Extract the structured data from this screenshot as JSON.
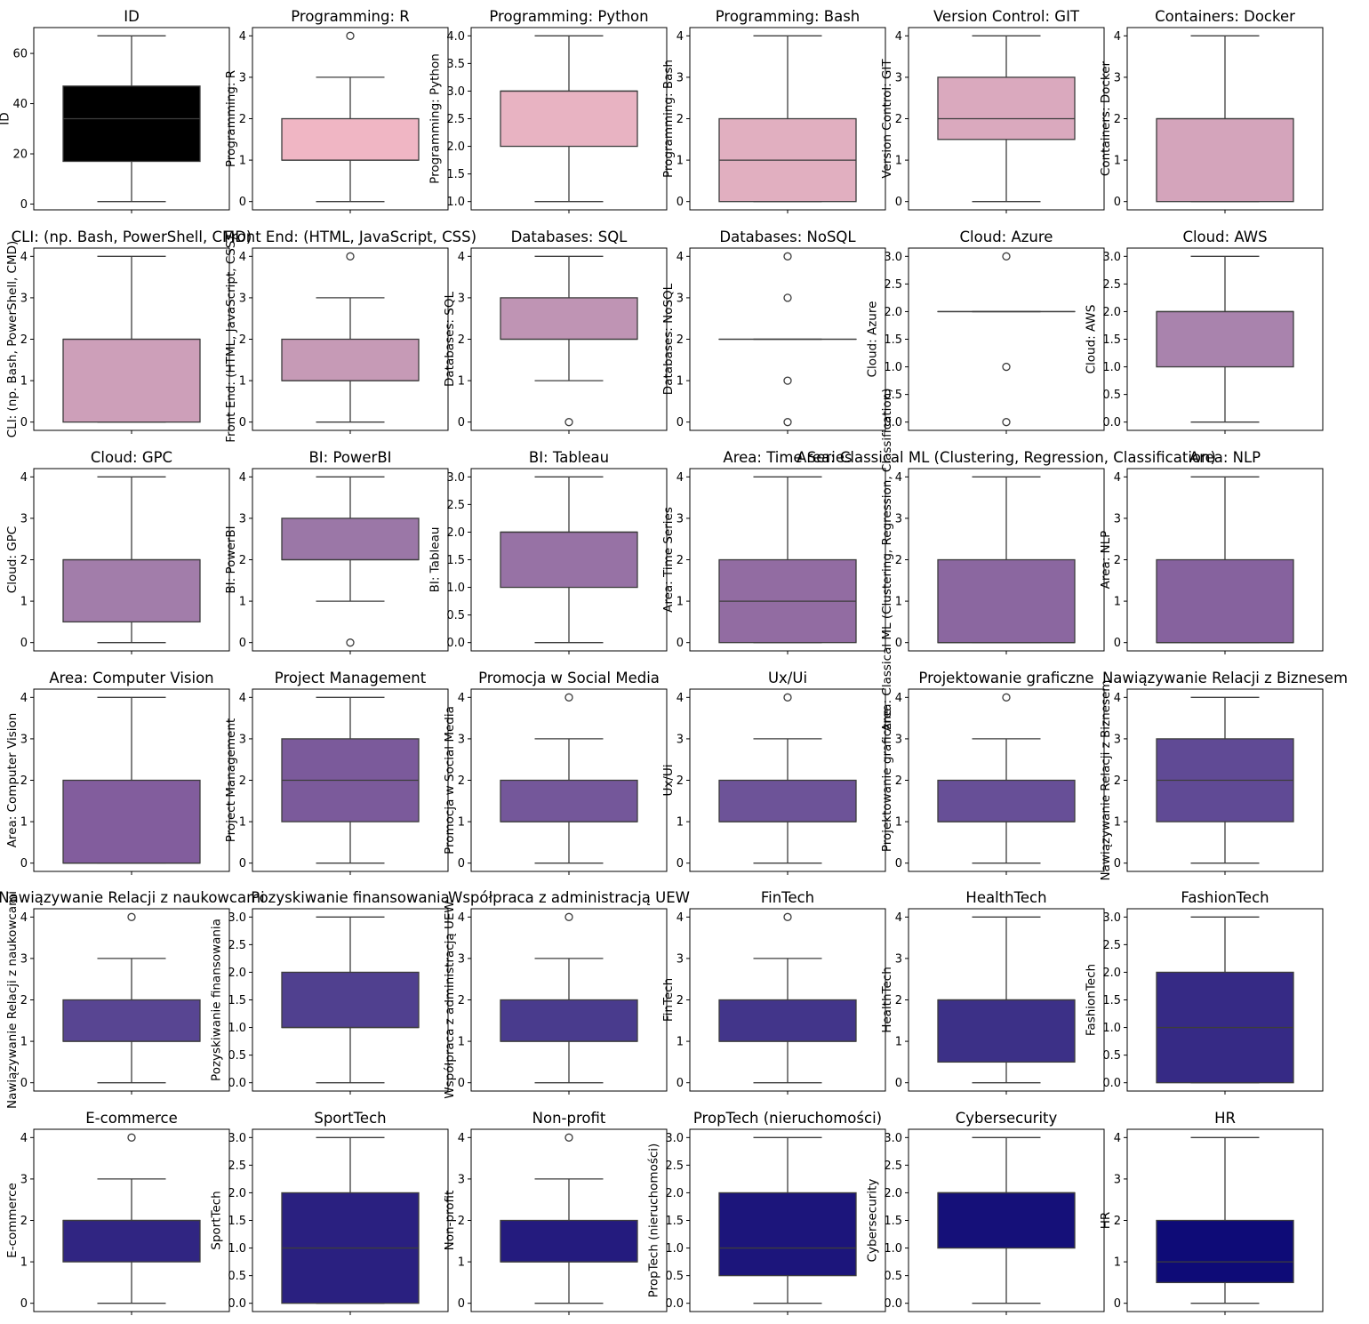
{
  "chart_data": [
    {
      "type": "box",
      "title": "ID",
      "ylabel": "ID",
      "ylim": [
        -2.3,
        70.3
      ],
      "yticks": [
        0,
        20,
        40,
        60
      ],
      "box": {
        "whislo": 1,
        "q1": 17,
        "median": 34,
        "q3": 47,
        "whishi": 67
      },
      "fliers": [],
      "color": "#000000"
    },
    {
      "type": "box",
      "title": "Programming: R",
      "ylabel": "Programming: R",
      "ylim": [
        -0.2,
        4.2
      ],
      "yticks": [
        0,
        1,
        2,
        3,
        4
      ],
      "box": {
        "whislo": 0,
        "q1": 1,
        "median": 1,
        "q3": 2,
        "whishi": 3
      },
      "fliers": [
        4
      ],
      "color": "#f0b6c4"
    },
    {
      "type": "box",
      "title": "Programming: Python",
      "ylabel": "Programming: Python",
      "ylim": [
        0.85,
        4.15
      ],
      "yticks": [
        1.0,
        1.5,
        2.0,
        2.5,
        3.0,
        3.5,
        4.0
      ],
      "box": {
        "whislo": 1,
        "q1": 2,
        "median": 3,
        "q3": 3,
        "whishi": 4
      },
      "fliers": [],
      "color": "#e8b3c2"
    },
    {
      "type": "box",
      "title": "Programming: Bash",
      "ylabel": "Programming: Bash",
      "ylim": [
        -0.2,
        4.2
      ],
      "yticks": [
        0,
        1,
        2,
        3,
        4
      ],
      "box": {
        "whislo": 0,
        "q1": 0,
        "median": 1,
        "q3": 2,
        "whishi": 4
      },
      "fliers": [],
      "color": "#e1afc0"
    },
    {
      "type": "box",
      "title": "Version Control: GIT",
      "ylabel": "Version Control: GIT",
      "ylim": [
        -0.2,
        4.2
      ],
      "yticks": [
        0,
        1,
        2,
        3,
        4
      ],
      "box": {
        "whislo": 0,
        "q1": 1.5,
        "median": 2,
        "q3": 3,
        "whishi": 4
      },
      "fliers": [],
      "color": "#daa9be"
    },
    {
      "type": "box",
      "title": "Containers: Docker",
      "ylabel": "Containers: Docker",
      "ylim": [
        -0.2,
        4.2
      ],
      "yticks": [
        0,
        1,
        2,
        3,
        4
      ],
      "box": {
        "whislo": 0,
        "q1": 0,
        "median": 2,
        "q3": 2,
        "whishi": 4
      },
      "fliers": [],
      "color": "#d4a4bb"
    },
    {
      "type": "box",
      "title": "CLI: (np. Bash, PowerShell, CMD)",
      "ylabel": "CLI: (np. Bash, PowerShell, CMD)",
      "ylim": [
        -0.2,
        4.2
      ],
      "yticks": [
        0,
        1,
        2,
        3,
        4
      ],
      "box": {
        "whislo": 0,
        "q1": 0,
        "median": 2,
        "q3": 2,
        "whishi": 4
      },
      "fliers": [],
      "color": "#cd9fb9"
    },
    {
      "type": "box",
      "title": "Front End: (HTML, JavaScript, CSS)",
      "ylabel": "Front End: (HTML, JavaScript, CSS)",
      "ylim": [
        -0.2,
        4.2
      ],
      "yticks": [
        0,
        1,
        2,
        3,
        4
      ],
      "box": {
        "whislo": 0,
        "q1": 1,
        "median": 1,
        "q3": 2,
        "whishi": 3
      },
      "fliers": [
        4
      ],
      "color": "#c69ab6"
    },
    {
      "type": "box",
      "title": "Databases: SQL",
      "ylabel": "Databases: SQL",
      "ylim": [
        -0.2,
        4.2
      ],
      "yticks": [
        0,
        1,
        2,
        3,
        4
      ],
      "box": {
        "whislo": 1,
        "q1": 2,
        "median": 2,
        "q3": 3,
        "whishi": 4
      },
      "fliers": [
        0
      ],
      "color": "#bf94b4"
    },
    {
      "type": "box",
      "title": "Databases: NoSQL",
      "ylabel": "Databases: NoSQL",
      "ylim": [
        -0.2,
        4.2
      ],
      "yticks": [
        0,
        1,
        2,
        3,
        4
      ],
      "box": {
        "whislo": 2,
        "q1": 2,
        "median": 2,
        "q3": 2,
        "whishi": 2
      },
      "fliers": [
        0,
        1,
        3,
        4
      ],
      "color": "#b88fb1"
    },
    {
      "type": "box",
      "title": "Cloud: Azure",
      "ylabel": "Cloud: Azure",
      "ylim": [
        -0.15,
        3.15
      ],
      "yticks": [
        0.0,
        0.5,
        1.0,
        1.5,
        2.0,
        2.5,
        3.0
      ],
      "box": {
        "whislo": 2,
        "q1": 2,
        "median": 2,
        "q3": 2,
        "whishi": 2
      },
      "fliers": [
        0,
        1,
        3
      ],
      "color": "#b089af"
    },
    {
      "type": "box",
      "title": "Cloud: AWS",
      "ylabel": "Cloud: AWS",
      "ylim": [
        -0.15,
        3.15
      ],
      "yticks": [
        0.0,
        0.5,
        1.0,
        1.5,
        2.0,
        2.5,
        3.0
      ],
      "box": {
        "whislo": 0,
        "q1": 1,
        "median": 2,
        "q3": 2,
        "whishi": 3
      },
      "fliers": [],
      "color": "#a983ad"
    },
    {
      "type": "box",
      "title": "Cloud: GPC",
      "ylabel": "Cloud: GPC",
      "ylim": [
        -0.2,
        4.2
      ],
      "yticks": [
        0,
        1,
        2,
        3,
        4
      ],
      "box": {
        "whislo": 0,
        "q1": 0.5,
        "median": 2,
        "q3": 2,
        "whishi": 4
      },
      "fliers": [],
      "color": "#a27daa"
    },
    {
      "type": "box",
      "title": "BI: PowerBI",
      "ylabel": "BI: PowerBI",
      "ylim": [
        -0.2,
        4.2
      ],
      "yticks": [
        0,
        1,
        2,
        3,
        4
      ],
      "box": {
        "whislo": 1,
        "q1": 2,
        "median": 2,
        "q3": 3,
        "whishi": 4
      },
      "fliers": [
        0
      ],
      "color": "#9b77a7"
    },
    {
      "type": "box",
      "title": "BI: Tableau",
      "ylabel": "BI: Tableau",
      "ylim": [
        -0.15,
        3.15
      ],
      "yticks": [
        0.0,
        0.5,
        1.0,
        1.5,
        2.0,
        2.5,
        3.0
      ],
      "box": {
        "whislo": 0,
        "q1": 1,
        "median": 2,
        "q3": 2,
        "whishi": 3
      },
      "fliers": [],
      "color": "#9772a5"
    },
    {
      "type": "box",
      "title": "Area: Time Series",
      "ylabel": "Area: Time Series",
      "ylim": [
        -0.2,
        4.2
      ],
      "yticks": [
        0,
        1,
        2,
        3,
        4
      ],
      "box": {
        "whislo": 0,
        "q1": 0,
        "median": 1,
        "q3": 2,
        "whishi": 4
      },
      "fliers": [],
      "color": "#926ca2"
    },
    {
      "type": "box",
      "title": "Area: Classical ML (Clustering, Regression, Classification)",
      "ylabel": "Area: Classical ML (Clustering, Regression, Classification)",
      "ylim": [
        -0.2,
        4.2
      ],
      "yticks": [
        0,
        1,
        2,
        3,
        4
      ],
      "box": {
        "whislo": 0,
        "q1": 0,
        "median": 0,
        "q3": 2,
        "whishi": 4
      },
      "fliers": [],
      "color": "#8b67a0"
    },
    {
      "type": "box",
      "title": "Area: NLP",
      "ylabel": "Area: NLP",
      "ylim": [
        -0.2,
        4.2
      ],
      "yticks": [
        0,
        1,
        2,
        3,
        4
      ],
      "box": {
        "whislo": 0,
        "q1": 0,
        "median": 0,
        "q3": 2,
        "whishi": 4
      },
      "fliers": [],
      "color": "#86629e"
    },
    {
      "type": "box",
      "title": "Area: Computer Vision",
      "ylabel": "Area: Computer Vision",
      "ylim": [
        -0.2,
        4.2
      ],
      "yticks": [
        0,
        1,
        2,
        3,
        4
      ],
      "box": {
        "whislo": 0,
        "q1": 0,
        "median": 0,
        "q3": 2,
        "whishi": 4
      },
      "fliers": [],
      "color": "#825d9d"
    },
    {
      "type": "box",
      "title": "Project Management",
      "ylabel": "Project Management",
      "ylim": [
        -0.2,
        4.2
      ],
      "yticks": [
        0,
        1,
        2,
        3,
        4
      ],
      "box": {
        "whislo": 0,
        "q1": 1,
        "median": 2,
        "q3": 3,
        "whishi": 4
      },
      "fliers": [],
      "color": "#7b5a9b"
    },
    {
      "type": "box",
      "title": "Promocja w Social Media",
      "ylabel": "Promocja w Social Media",
      "ylim": [
        -0.2,
        4.2
      ],
      "yticks": [
        0,
        1,
        2,
        3,
        4
      ],
      "box": {
        "whislo": 0,
        "q1": 1,
        "median": 1,
        "q3": 2,
        "whishi": 3
      },
      "fliers": [
        4
      ],
      "color": "#74579a"
    },
    {
      "type": "box",
      "title": "Ux/Ui",
      "ylabel": "Ux/Ui",
      "ylim": [
        -0.2,
        4.2
      ],
      "yticks": [
        0,
        1,
        2,
        3,
        4
      ],
      "box": {
        "whislo": 0,
        "q1": 1,
        "median": 1,
        "q3": 2,
        "whishi": 3
      },
      "fliers": [
        4
      ],
      "color": "#6d5398"
    },
    {
      "type": "box",
      "title": "Projektowanie graficzne",
      "ylabel": "Projektowanie graficzne",
      "ylim": [
        -0.2,
        4.2
      ],
      "yticks": [
        0,
        1,
        2,
        3,
        4
      ],
      "box": {
        "whislo": 0,
        "q1": 1,
        "median": 1,
        "q3": 2,
        "whishi": 3
      },
      "fliers": [
        4
      ],
      "color": "#674f97"
    },
    {
      "type": "box",
      "title": "Nawiązywanie Relacji z Biznesem",
      "ylabel": "Nawiązywanie Relacji z Biznesem",
      "ylim": [
        -0.2,
        4.2
      ],
      "yticks": [
        0,
        1,
        2,
        3,
        4
      ],
      "box": {
        "whislo": 0,
        "q1": 1,
        "median": 2,
        "q3": 3,
        "whishi": 4
      },
      "fliers": [],
      "color": "#604a95"
    },
    {
      "type": "box",
      "title": "Nawiązywanie Relacji z naukowcami",
      "ylabel": "Nawiązywanie Relacji z naukowcami",
      "ylim": [
        -0.2,
        4.2
      ],
      "yticks": [
        0,
        1,
        2,
        3,
        4
      ],
      "box": {
        "whislo": 0,
        "q1": 1,
        "median": 1,
        "q3": 2,
        "whishi": 3
      },
      "fliers": [
        4
      ],
      "color": "#584592"
    },
    {
      "type": "box",
      "title": "Pozyskiwanie finansowania",
      "ylabel": "Pozyskiwanie finansowania",
      "ylim": [
        -0.15,
        3.15
      ],
      "yticks": [
        0.0,
        0.5,
        1.0,
        1.5,
        2.0,
        2.5,
        3.0
      ],
      "box": {
        "whislo": 0,
        "q1": 1,
        "median": 1,
        "q3": 2,
        "whishi": 3
      },
      "fliers": [],
      "color": "#50408f"
    },
    {
      "type": "box",
      "title": "Współpraca z administracją UEW",
      "ylabel": "Współpraca z administracją UEW",
      "ylim": [
        -0.2,
        4.2
      ],
      "yticks": [
        0,
        1,
        2,
        3,
        4
      ],
      "box": {
        "whislo": 0,
        "q1": 1,
        "median": 1,
        "q3": 2,
        "whishi": 3
      },
      "fliers": [
        4
      ],
      "color": "#493b8d"
    },
    {
      "type": "box",
      "title": "FinTech",
      "ylabel": "FinTech",
      "ylim": [
        -0.2,
        4.2
      ],
      "yticks": [
        0,
        1,
        2,
        3,
        4
      ],
      "box": {
        "whislo": 0,
        "q1": 1,
        "median": 1,
        "q3": 2,
        "whishi": 3
      },
      "fliers": [
        4
      ],
      "color": "#42358a"
    },
    {
      "type": "box",
      "title": "HealthTech",
      "ylabel": "HealthTech",
      "ylim": [
        -0.2,
        4.2
      ],
      "yticks": [
        0,
        1,
        2,
        3,
        4
      ],
      "box": {
        "whislo": 0,
        "q1": 0.5,
        "median": 2,
        "q3": 2,
        "whishi": 4
      },
      "fliers": [],
      "color": "#3c3087"
    },
    {
      "type": "box",
      "title": "FashionTech",
      "ylabel": "FashionTech",
      "ylim": [
        -0.15,
        3.15
      ],
      "yticks": [
        0.0,
        0.5,
        1.0,
        1.5,
        2.0,
        2.5,
        3.0
      ],
      "box": {
        "whislo": 0,
        "q1": 0,
        "median": 1,
        "q3": 2,
        "whishi": 3
      },
      "fliers": [],
      "color": "#362a85"
    },
    {
      "type": "box",
      "title": "E-commerce",
      "ylabel": "E-commerce",
      "ylim": [
        -0.2,
        4.2
      ],
      "yticks": [
        0,
        1,
        2,
        3,
        4
      ],
      "box": {
        "whislo": 0,
        "q1": 1,
        "median": 2,
        "q3": 2,
        "whishi": 3
      },
      "fliers": [
        4
      ],
      "color": "#302582"
    },
    {
      "type": "box",
      "title": "SportTech",
      "ylabel": "SportTech",
      "ylim": [
        -0.15,
        3.15
      ],
      "yticks": [
        0.0,
        0.5,
        1.0,
        1.5,
        2.0,
        2.5,
        3.0
      ],
      "box": {
        "whislo": 0,
        "q1": 0,
        "median": 1,
        "q3": 2,
        "whishi": 3
      },
      "fliers": [],
      "color": "#2a2080"
    },
    {
      "type": "box",
      "title": "Non-profit",
      "ylabel": "Non-profit",
      "ylim": [
        -0.2,
        4.2
      ],
      "yticks": [
        0,
        1,
        2,
        3,
        4
      ],
      "box": {
        "whislo": 0,
        "q1": 1,
        "median": 1,
        "q3": 2,
        "whishi": 3
      },
      "fliers": [
        4
      ],
      "color": "#241b7e"
    },
    {
      "type": "box",
      "title": "PropTech (nieruchomości)",
      "ylabel": "PropTech (nieruchomości)",
      "ylim": [
        -0.15,
        3.15
      ],
      "yticks": [
        0.0,
        0.5,
        1.0,
        1.5,
        2.0,
        2.5,
        3.0
      ],
      "box": {
        "whislo": 0,
        "q1": 0.5,
        "median": 1,
        "q3": 2,
        "whishi": 3
      },
      "fliers": [],
      "color": "#1c157b"
    },
    {
      "type": "box",
      "title": "Cybersecurity",
      "ylabel": "Cybersecurity",
      "ylim": [
        -0.15,
        3.15
      ],
      "yticks": [
        0.0,
        0.5,
        1.0,
        1.5,
        2.0,
        2.5,
        3.0
      ],
      "box": {
        "whislo": 0,
        "q1": 1,
        "median": 2,
        "q3": 2,
        "whishi": 3
      },
      "fliers": [],
      "color": "#151079"
    },
    {
      "type": "box",
      "title": "HR",
      "ylabel": "HR",
      "ylim": [
        -0.2,
        4.2
      ],
      "yticks": [
        0,
        1,
        2,
        3,
        4
      ],
      "box": {
        "whislo": 0,
        "q1": 0.5,
        "median": 1,
        "q3": 2,
        "whishi": 4
      },
      "fliers": [],
      "color": "#0e0b77"
    }
  ]
}
